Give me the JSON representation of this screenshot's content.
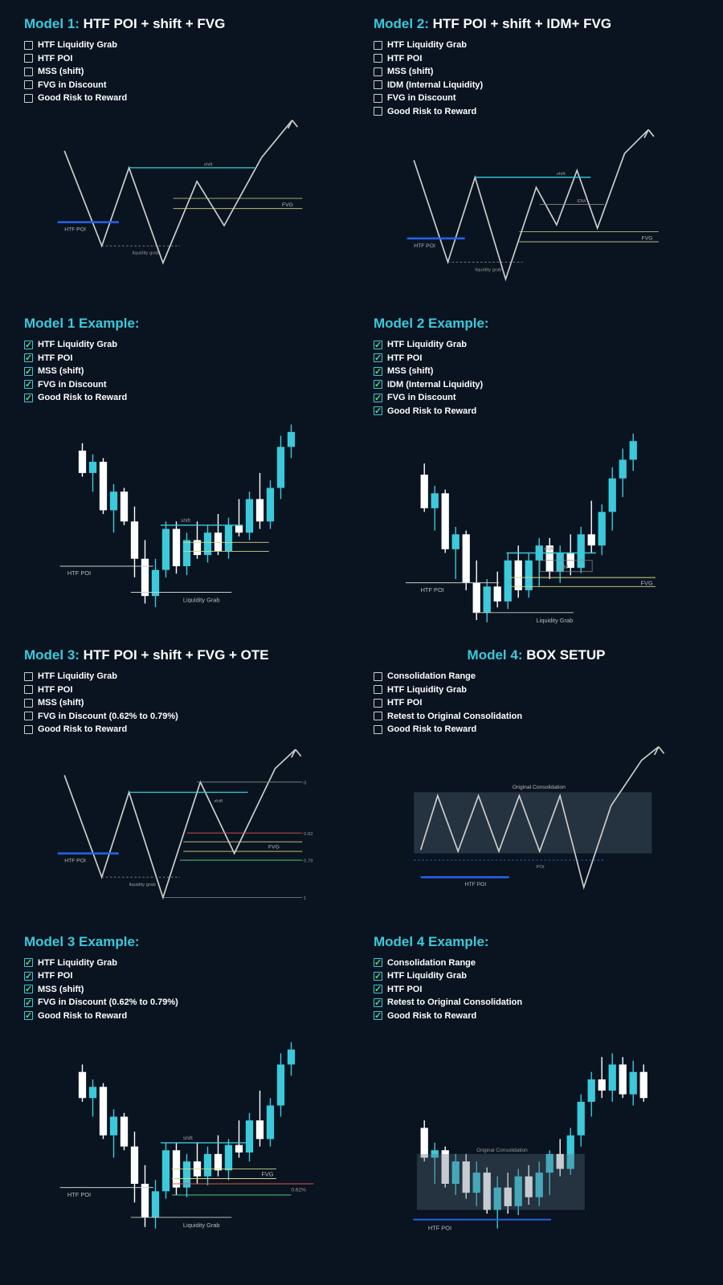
{
  "colors": {
    "bg": "#0a1420",
    "accent": "#3bc9db",
    "white": "#ffffff",
    "line": "#cccccc",
    "candle_up": "#3bc9db",
    "candle_dn": "#ffffff",
    "htf_poi": "#2563eb",
    "shift": "#3bc9db",
    "fvg": "#d4d488",
    "liq": "#888888",
    "ote_red": "#dc5555",
    "ote_green": "#55dc88",
    "box_fill": "#5a6b7a"
  },
  "panels": [
    {
      "title_accent": "Model 1:",
      "title_white": " HTF POI + shift + FVG",
      "checks": [
        "HTF Liquidity Grab",
        "HTF POI",
        "MSS (shift)",
        "FVG in Discount",
        "Good Risk to Reward"
      ],
      "checked": false,
      "type": "diagram1"
    },
    {
      "title_accent": "Model 2:",
      "title_white": " HTF POI + shift + IDM+ FVG",
      "checks": [
        "HTF Liquidity Grab",
        "HTF POI",
        "MSS (shift)",
        "IDM (Internal Liquidity)",
        "FVG in Discount",
        "Good Risk to Reward"
      ],
      "checked": false,
      "type": "diagram2"
    },
    {
      "title_accent": "Model 1 Example:",
      "title_white": "",
      "checks": [
        "HTF Liquidity Grab",
        "HTF POI",
        "MSS (shift)",
        "FVG in Discount",
        "Good Risk to Reward"
      ],
      "checked": true,
      "type": "candles1"
    },
    {
      "title_accent": "Model 2 Example:",
      "title_white": "",
      "checks": [
        "HTF Liquidity Grab",
        "HTF POI",
        "MSS (shift)",
        "IDM (Internal Liquidity)",
        "FVG in Discount",
        "Good Risk to Reward"
      ],
      "checked": true,
      "type": "candles2"
    },
    {
      "title_accent": "Model 3:",
      "title_white": " HTF POI + shift + FVG + OTE",
      "checks": [
        "HTF Liquidity Grab",
        "HTF POI",
        "MSS (shift)",
        "FVG in Discount (0.62% to 0.79%)",
        "Good Risk to Reward"
      ],
      "checked": false,
      "type": "diagram3"
    },
    {
      "title_accent": "Model 4:",
      "title_white": " BOX SETUP",
      "title_center": true,
      "checks": [
        "Consolidation Range",
        "HTF Liquidity Grab",
        "HTF POI",
        "Retest to Original Consolidation",
        "Good Risk to Reward"
      ],
      "checked": false,
      "type": "diagram4"
    },
    {
      "title_accent": "Model 3 Example:",
      "title_white": "",
      "checks": [
        "HTF Liquidity Grab",
        "HTF POI",
        "MSS (shift)",
        "FVG in Discount (0.62% to 0.79%)",
        "Good Risk to Reward"
      ],
      "checked": true,
      "type": "candles3"
    },
    {
      "title_accent": "Model 4 Example:",
      "title_white": "",
      "checks": [
        "Consolidation Range",
        "HTF Liquidity Grab",
        "HTF POI",
        "Retest to Original Consolidation",
        "Good Risk to Reward"
      ],
      "checked": true,
      "type": "candles4"
    }
  ],
  "labels": {
    "htf_poi": "HTF POI",
    "shift": "shift",
    "fvg": "FVG",
    "liq_grab": "liquidity grab",
    "liq_grab2": "Liquidity Grab",
    "idm": "IDM",
    "orig_cons": "Original Consolidation",
    "poi": "POI",
    "ote062": "0.62",
    "ote079": "0.79",
    "ote062p": "0.62%"
  }
}
